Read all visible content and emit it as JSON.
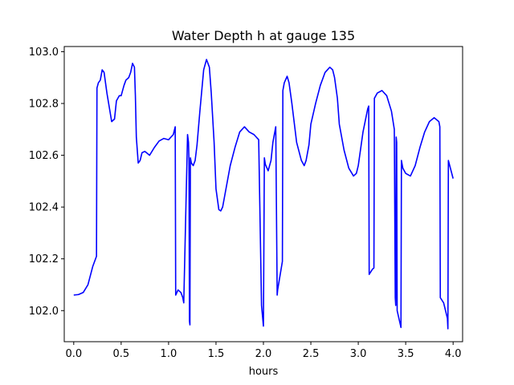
{
  "chart_data": {
    "type": "line",
    "title": "Water Depth h at gauge 135",
    "xlabel": "hours",
    "ylabel": "",
    "xlim": [
      -0.1,
      4.1
    ],
    "ylim": [
      101.88,
      103.02
    ],
    "grid": false,
    "xticks": [
      0.0,
      0.5,
      1.0,
      1.5,
      2.0,
      2.5,
      3.0,
      3.5,
      4.0
    ],
    "xtick_labels": [
      "0.0",
      "0.5",
      "1.0",
      "1.5",
      "2.0",
      "2.5",
      "3.0",
      "3.5",
      "4.0"
    ],
    "yticks": [
      102.0,
      102.2,
      102.4,
      102.6,
      102.8,
      103.0
    ],
    "ytick_labels": [
      "102.0",
      "102.2",
      "102.4",
      "102.6",
      "102.8",
      "103.0"
    ],
    "series": [
      {
        "color": "#0000ff",
        "x": [
          0.0,
          0.05,
          0.1,
          0.15,
          0.2,
          0.24,
          0.245,
          0.26,
          0.28,
          0.3,
          0.32,
          0.35,
          0.4,
          0.43,
          0.45,
          0.48,
          0.5,
          0.53,
          0.55,
          0.58,
          0.6,
          0.62,
          0.64,
          0.65,
          0.66,
          0.68,
          0.7,
          0.72,
          0.75,
          0.8,
          0.85,
          0.9,
          0.95,
          1.0,
          1.05,
          1.07,
          1.075,
          1.1,
          1.13,
          1.15,
          1.16,
          1.2,
          1.21,
          1.215,
          1.22,
          1.225,
          1.23,
          1.24,
          1.26,
          1.28,
          1.3,
          1.33,
          1.37,
          1.4,
          1.43,
          1.45,
          1.48,
          1.5,
          1.53,
          1.55,
          1.57,
          1.6,
          1.65,
          1.7,
          1.75,
          1.8,
          1.85,
          1.9,
          1.95,
          1.98,
          1.985,
          2.0,
          2.01,
          2.02,
          2.05,
          2.08,
          2.1,
          2.13,
          2.145,
          2.15,
          2.2,
          2.205,
          2.22,
          2.25,
          2.27,
          2.3,
          2.35,
          2.4,
          2.43,
          2.45,
          2.48,
          2.5,
          2.55,
          2.6,
          2.65,
          2.7,
          2.73,
          2.75,
          2.78,
          2.8,
          2.85,
          2.9,
          2.95,
          2.98,
          3.0,
          3.05,
          3.1,
          3.11,
          3.115,
          3.15,
          3.165,
          3.17,
          3.2,
          3.25,
          3.3,
          3.35,
          3.38,
          3.39,
          3.395,
          3.4,
          3.405,
          3.41,
          3.45,
          3.455,
          3.47,
          3.5,
          3.55,
          3.6,
          3.65,
          3.7,
          3.75,
          3.8,
          3.85,
          3.86,
          3.865,
          3.9,
          3.94,
          3.945,
          3.95,
          4.0
        ],
        "y": [
          102.06,
          102.062,
          102.07,
          102.1,
          102.17,
          102.21,
          102.86,
          102.88,
          102.89,
          102.93,
          102.92,
          102.84,
          102.73,
          102.74,
          102.81,
          102.83,
          102.83,
          102.87,
          102.89,
          102.9,
          102.92,
          102.955,
          102.94,
          102.83,
          102.67,
          102.57,
          102.58,
          102.61,
          102.615,
          102.6,
          102.63,
          102.655,
          102.665,
          102.66,
          102.68,
          102.71,
          102.06,
          102.08,
          102.07,
          102.05,
          102.03,
          102.68,
          102.65,
          102.58,
          101.96,
          101.945,
          102.59,
          102.57,
          102.56,
          102.58,
          102.64,
          102.77,
          102.93,
          102.97,
          102.94,
          102.84,
          102.65,
          102.47,
          102.39,
          102.385,
          102.4,
          102.46,
          102.56,
          102.63,
          102.69,
          102.71,
          102.69,
          102.68,
          102.66,
          102.02,
          102.0,
          101.94,
          102.59,
          102.565,
          102.54,
          102.58,
          102.65,
          102.71,
          102.06,
          102.08,
          102.19,
          102.85,
          102.88,
          102.905,
          102.88,
          102.8,
          102.65,
          102.58,
          102.56,
          102.58,
          102.64,
          102.72,
          102.8,
          102.87,
          102.92,
          102.94,
          102.93,
          102.9,
          102.82,
          102.72,
          102.62,
          102.55,
          102.52,
          102.53,
          102.56,
          102.69,
          102.78,
          102.79,
          102.14,
          102.16,
          102.165,
          102.82,
          102.84,
          102.85,
          102.83,
          102.77,
          102.7,
          102.05,
          102.02,
          102.67,
          102.65,
          102.0,
          101.935,
          102.58,
          102.55,
          102.53,
          102.52,
          102.56,
          102.63,
          102.69,
          102.73,
          102.745,
          102.73,
          102.71,
          102.05,
          102.03,
          101.97,
          101.93,
          102.58,
          102.51
        ]
      }
    ]
  }
}
